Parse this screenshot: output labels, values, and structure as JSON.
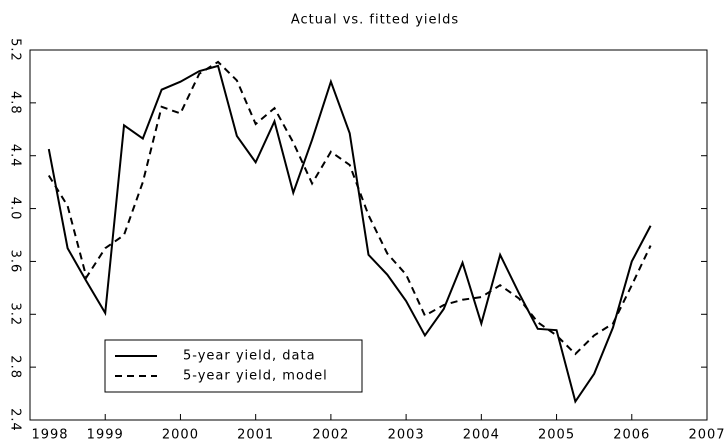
{
  "chart_data": {
    "type": "line",
    "title": "Actual vs. fitted yields",
    "x": [
      1998.25,
      1998.5,
      1998.75,
      1999,
      1999.25,
      1999.5,
      1999.75,
      2000,
      2000.25,
      2000.5,
      2000.75,
      2001,
      2001.25,
      2001.5,
      2001.75,
      2002,
      2002.25,
      2002.5,
      2002.75,
      2003,
      2003.25,
      2003.5,
      2003.75,
      2004,
      2004.25,
      2004.5,
      2004.75,
      2005,
      2005.25,
      2005.5,
      2005.75,
      2006,
      2006.25
    ],
    "series": [
      {
        "name": "5-year yield, data",
        "color": "#000000",
        "dash": "solid",
        "values": [
          4.45,
          3.7,
          3.45,
          3.21,
          4.63,
          4.53,
          4.9,
          4.96,
          5.04,
          5.08,
          4.55,
          4.35,
          4.66,
          4.12,
          4.52,
          4.96,
          4.57,
          3.65,
          3.5,
          3.3,
          3.04,
          3.24,
          3.59,
          3.13,
          3.65,
          3.36,
          3.09,
          3.08,
          2.54,
          2.75,
          3.1,
          3.6,
          3.87
        ]
      },
      {
        "name": "5-year yield, model",
        "color": "#000000",
        "dash": "dashed",
        "values": [
          4.25,
          4.02,
          3.48,
          3.7,
          3.8,
          4.2,
          4.77,
          4.72,
          5.02,
          5.11,
          4.97,
          4.64,
          4.76,
          4.5,
          4.19,
          4.43,
          4.33,
          3.95,
          3.66,
          3.5,
          3.19,
          3.27,
          3.31,
          3.33,
          3.42,
          3.32,
          3.14,
          3.04,
          2.9,
          3.04,
          3.13,
          3.42,
          3.72
        ]
      }
    ],
    "xlim": [
      1998,
      2007
    ],
    "xticks": [
      1998,
      1999,
      2000,
      2001,
      2002,
      2003,
      2004,
      2005,
      2006,
      2007
    ],
    "ylim": [
      2.4,
      5.2
    ],
    "yticks": [
      2.4,
      2.8,
      3.2,
      3.6,
      {
        "value": 4,
        "label": "4.0"
      },
      4.4,
      4.8,
      5.2
    ],
    "legend": "lower left"
  }
}
